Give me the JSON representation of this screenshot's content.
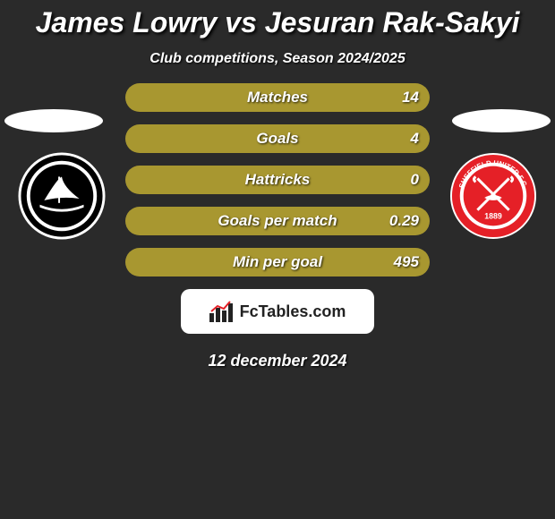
{
  "title": "James Lowry vs Jesuran Rak-Sakyi",
  "title_fontsize": 32,
  "subtitle": "Club competitions, Season 2024/2025",
  "subtitle_fontsize": 16,
  "date": "12 december 2024",
  "date_fontsize": 18,
  "branding": "FcTables.com",
  "colors": {
    "background": "#2a2a2a",
    "bar_fill": "#a89730",
    "bar_left_fill": "#8a7c26",
    "text": "#ffffff",
    "plymouth_primary": "#000000",
    "plymouth_secondary": "#ffffff",
    "sheffield_primary": "#e52027",
    "sheffield_secondary": "#ffffff",
    "sheffield_accent": "#000000"
  },
  "clubs": {
    "left": "Plymouth Argyle",
    "left_icon": "plymouth-badge",
    "right": "Sheffield United FC",
    "right_icon": "sheffield-united-badge",
    "right_year": "1889"
  },
  "stats": [
    {
      "label": "Matches",
      "value": "14",
      "label_fontsize": 17,
      "left_width_pct": 0
    },
    {
      "label": "Goals",
      "value": "4",
      "label_fontsize": 17,
      "left_width_pct": 0
    },
    {
      "label": "Hattricks",
      "value": "0",
      "label_fontsize": 17,
      "left_width_pct": 0
    },
    {
      "label": "Goals per match",
      "value": "0.29",
      "label_fontsize": 17,
      "left_width_pct": 0
    },
    {
      "label": "Min per goal",
      "value": "495",
      "label_fontsize": 17,
      "left_width_pct": 0
    }
  ]
}
